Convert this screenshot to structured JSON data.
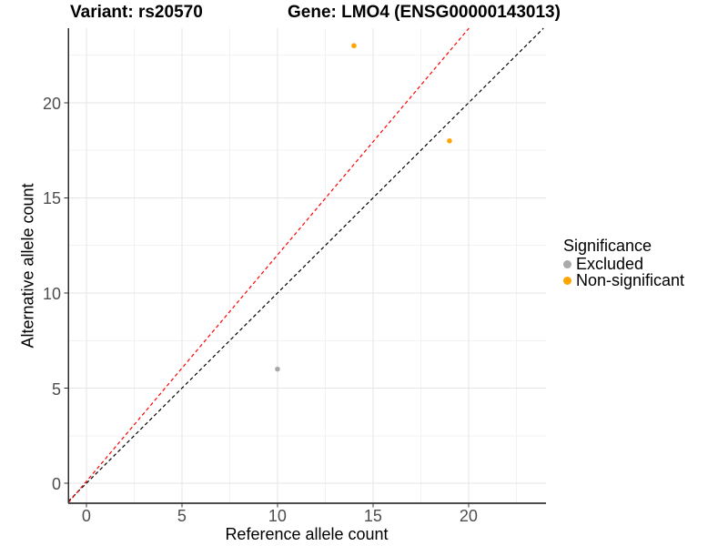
{
  "header": {
    "variant_title": "Variant: rs20570",
    "gene_title": "Gene: LMO4 (ENSG00000143013)"
  },
  "chart_data": {
    "type": "scatter",
    "title": "",
    "xlabel": "Reference allele count",
    "ylabel": "Alternative allele count",
    "xlim": [
      -0.95,
      24.05
    ],
    "ylim": [
      -1.05,
      23.92
    ],
    "x_ticks": [
      0,
      5,
      10,
      15,
      20
    ],
    "y_ticks": [
      0,
      5,
      10,
      15,
      20
    ],
    "x_minor_ticks": [
      2.5,
      7.5,
      12.5,
      17.5,
      22.5
    ],
    "y_minor_ticks": [
      2.5,
      7.5,
      12.5,
      17.5,
      22.5
    ],
    "grid": "major+minor",
    "legend_position": "right",
    "points": [
      {
        "x": 14,
        "y": 23,
        "group": "Non-significant"
      },
      {
        "x": 19,
        "y": 18,
        "group": "Non-significant"
      },
      {
        "x": 10,
        "y": 6,
        "group": "Excluded"
      }
    ],
    "lines": [
      {
        "name": "identity-abline",
        "slope": 1,
        "intercept": 0,
        "color": "#000000",
        "style": "dashed"
      },
      {
        "name": "fit-abline",
        "slope": 1.19,
        "intercept": 0.1,
        "color": "#FF0000",
        "style": "dashed"
      }
    ],
    "group_colors": {
      "Excluded": "#A9A9A9",
      "Non-significant": "#FFA500"
    },
    "style": {
      "grid_major_color": "#E5E5E5",
      "grid_minor_color": "#F2F2F2",
      "axis_line_color": "#4D4D4D",
      "y_axis_line_color": "#2B2B2B",
      "tick_mark_color": "#333333",
      "tick_label_color": "#4D4D4D",
      "point_radius": 2.8,
      "background": "#FFFFFF"
    }
  },
  "legend": {
    "title": "Significance",
    "items": [
      {
        "label": "Excluded",
        "color": "#A9A9A9"
      },
      {
        "label": "Non-significant",
        "color": "#FFA500"
      }
    ]
  }
}
